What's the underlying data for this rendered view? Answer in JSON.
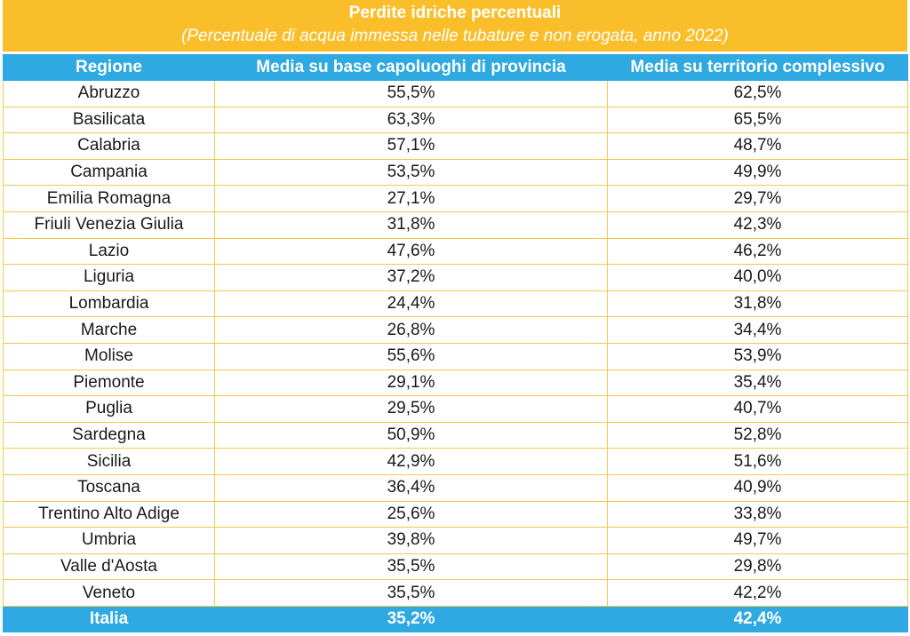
{
  "title": "Perdite idriche percentuali",
  "subtitle": "(Percentuale di acqua immessa nelle tubature e non erogata, anno 2022)",
  "columns": [
    "Regione",
    "Media su base capoluoghi di provincia",
    "Media su territorio complessivo"
  ],
  "rows": [
    [
      "Abruzzo",
      "55,5%",
      "62,5%"
    ],
    [
      "Basilicata",
      "63,3%",
      "65,5%"
    ],
    [
      "Calabria",
      "57,1%",
      "48,7%"
    ],
    [
      "Campania",
      "53,5%",
      "49,9%"
    ],
    [
      "Emilia Romagna",
      "27,1%",
      "29,7%"
    ],
    [
      "Friuli Venezia Giulia",
      "31,8%",
      "42,3%"
    ],
    [
      "Lazio",
      "47,6%",
      "46,2%"
    ],
    [
      "Liguria",
      "37,2%",
      "40,0%"
    ],
    [
      "Lombardia",
      "24,4%",
      "31,8%"
    ],
    [
      "Marche",
      "26,8%",
      "34,4%"
    ],
    [
      "Molise",
      "55,6%",
      "53,9%"
    ],
    [
      "Piemonte",
      "29,1%",
      "35,4%"
    ],
    [
      "Puglia",
      "29,5%",
      "40,7%"
    ],
    [
      "Sardegna",
      "50,9%",
      "52,8%"
    ],
    [
      "Sicilia",
      "42,9%",
      "51,6%"
    ],
    [
      "Toscana",
      "36,4%",
      "40,9%"
    ],
    [
      "Trentino Alto Adige",
      "25,6%",
      "33,8%"
    ],
    [
      "Umbria",
      "39,8%",
      "49,7%"
    ],
    [
      "Valle d'Aosta",
      "35,5%",
      "29,8%"
    ],
    [
      "Veneto",
      "35,5%",
      "42,2%"
    ]
  ],
  "total": [
    "Italia",
    "35,2%",
    "42,4%"
  ],
  "colors": {
    "title_bg": "#FBBE2B",
    "header_bg": "#2EA9E1",
    "grid": "#F5C84A"
  }
}
